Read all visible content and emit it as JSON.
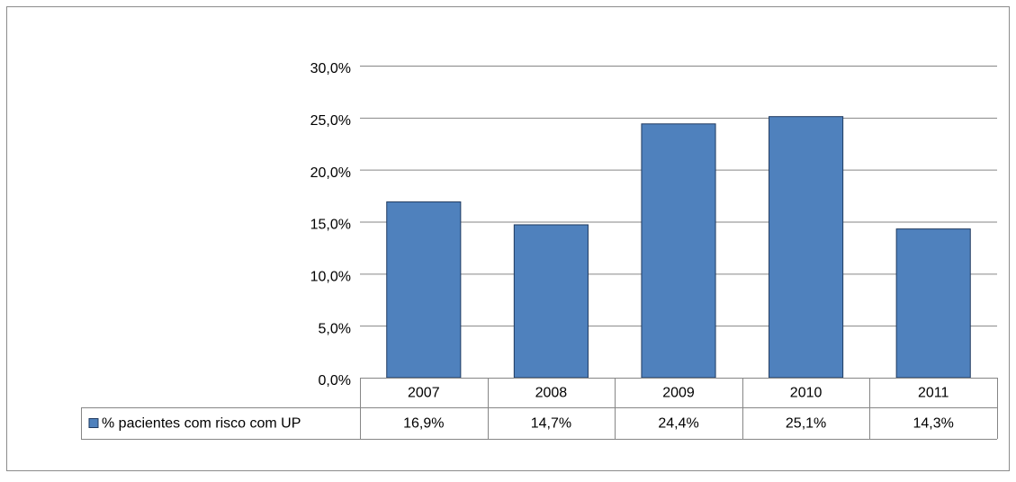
{
  "chart_data": {
    "type": "bar",
    "categories": [
      "2007",
      "2008",
      "2009",
      "2010",
      "2011"
    ],
    "series": [
      {
        "name": "% pacientes com risco com UP",
        "color": "#4f81bd",
        "values": [
          16.9,
          14.7,
          24.4,
          25.1,
          14.3
        ],
        "value_labels": [
          "16,9%",
          "14,7%",
          "24,4%",
          "25,1%",
          "14,3%"
        ]
      }
    ],
    "ylim": [
      0,
      30
    ],
    "yticks": [
      {
        "value": 0,
        "label": "0,0%"
      },
      {
        "value": 5,
        "label": "5,0%"
      },
      {
        "value": 10,
        "label": "10,0%"
      },
      {
        "value": 15,
        "label": "15,0%"
      },
      {
        "value": 20,
        "label": "20,0%"
      },
      {
        "value": 25,
        "label": "25,0%"
      },
      {
        "value": 30,
        "label": "30,0%"
      }
    ],
    "grid": true
  }
}
